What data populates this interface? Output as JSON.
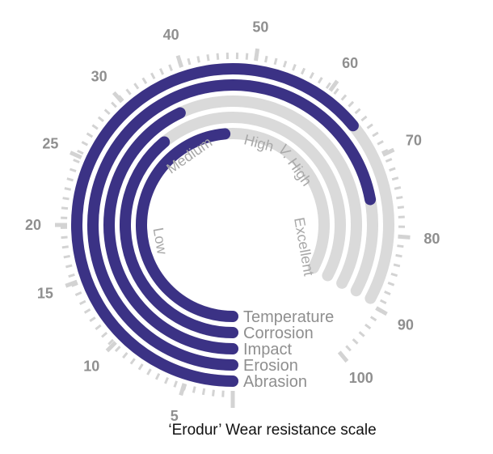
{
  "chart_data": {
    "type": "radial-bar",
    "title": "‘Erodur’  Wear resistance scale",
    "scale": {
      "min": 0,
      "max": 100,
      "ticks": [
        5,
        10,
        15,
        20,
        25,
        30,
        40,
        50,
        60,
        70,
        80,
        90,
        100
      ],
      "scale_type": "log"
    },
    "band_labels": [
      "Low",
      "Medium",
      "High",
      "V. High",
      "Excellent"
    ],
    "series": [
      {
        "name": "Abrasion",
        "value": 65
      },
      {
        "name": "Erosion",
        "value": 75
      },
      {
        "name": "Impact",
        "value": 37
      },
      {
        "name": "Corrosion",
        "value": 31
      },
      {
        "name": "Temperature",
        "value": 45
      }
    ],
    "colors": {
      "bar": "#3b3285",
      "track": "#dadada",
      "tick": "#d3d3d3",
      "text": "#8f8f8f"
    }
  }
}
